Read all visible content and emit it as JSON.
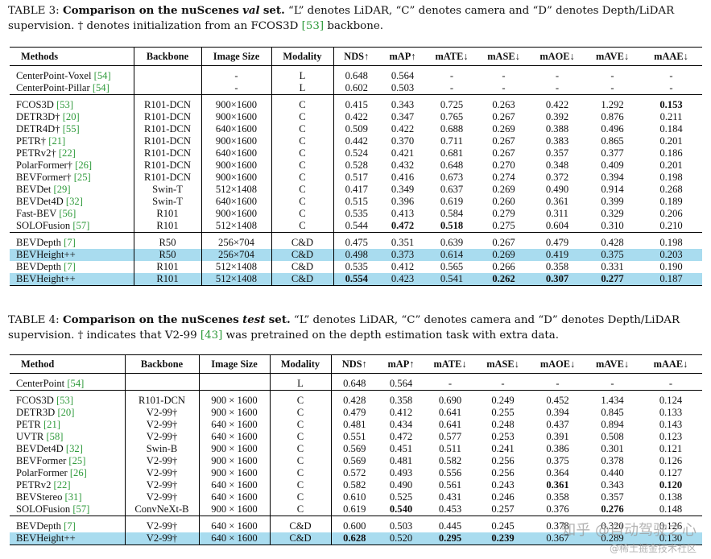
{
  "table3": {
    "label": "TABLE 3:",
    "caption_bold": "Comparison on the nuScenes",
    "caption_italic": "val",
    "caption_bold_end": "set.",
    "caption_rest_1": " “L” denotes LiDAR, “C” denotes camera and “D” denotes Depth/LiDAR supervision. † denotes initialization from an FCOS3D ",
    "caption_ref": "[53]",
    "caption_rest_2": " backbone.",
    "headers": [
      "Methods",
      "Backbone",
      "Image Size",
      "Modality",
      "NDS↑",
      "mAP↑",
      "mATE↓",
      "mASE↓",
      "mAOE↓",
      "mAVE↓",
      "mAAE↓"
    ],
    "groups": [
      [
        {
          "method": "CenterPoint-Voxel",
          "ref": "[54]",
          "cells": [
            "",
            "-",
            "L",
            "0.648",
            "0.564",
            "-",
            "-",
            "-",
            "-",
            "-"
          ]
        },
        {
          "method": "CenterPoint-Pillar",
          "ref": "[54]",
          "cells": [
            "",
            "-",
            "L",
            "0.602",
            "0.503",
            "-",
            "-",
            "-",
            "-",
            "-"
          ]
        }
      ],
      [
        {
          "method": "FCOS3D",
          "ref": "[53]",
          "cells": [
            "R101-DCN",
            "900×1600",
            "C",
            "0.415",
            "0.343",
            "0.725",
            "0.263",
            "0.422",
            "1.292",
            "0.153"
          ],
          "bold": [
            9
          ]
        },
        {
          "method": "DETR3D†",
          "ref": "[20]",
          "cells": [
            "R101-DCN",
            "900×1600",
            "C",
            "0.422",
            "0.347",
            "0.765",
            "0.267",
            "0.392",
            "0.876",
            "0.211"
          ]
        },
        {
          "method": "DETR4D†",
          "ref": "[55]",
          "cells": [
            "R101-DCN",
            "640×1600",
            "C",
            "0.509",
            "0.422",
            "0.688",
            "0.269",
            "0.388",
            "0.496",
            "0.184"
          ]
        },
        {
          "method": "PETR†",
          "ref": "[21]",
          "cells": [
            "R101-DCN",
            "900×1600",
            "C",
            "0.442",
            "0.370",
            "0.711",
            "0.267",
            "0.383",
            "0.865",
            "0.201"
          ]
        },
        {
          "method": "PETRv2†",
          "ref": "[22]",
          "cells": [
            "R101-DCN",
            "640×1600",
            "C",
            "0.524",
            "0.421",
            "0.681",
            "0.267",
            "0.357",
            "0.377",
            "0.186"
          ]
        },
        {
          "method": "PolarFormer†",
          "ref": "[26]",
          "cells": [
            "R101-DCN",
            "900×1600",
            "C",
            "0.528",
            "0.432",
            "0.648",
            "0.270",
            "0.348",
            "0.409",
            "0.201"
          ]
        },
        {
          "method": "BEVFormer†",
          "ref": "[25]",
          "cells": [
            "R101-DCN",
            "900×1600",
            "C",
            "0.517",
            "0.416",
            "0.673",
            "0.274",
            "0.372",
            "0.394",
            "0.198"
          ]
        },
        {
          "method": "BEVDet",
          "ref": "[29]",
          "cells": [
            "Swin-T",
            "512×1408",
            "C",
            "0.417",
            "0.349",
            "0.637",
            "0.269",
            "0.490",
            "0.914",
            "0.268"
          ]
        },
        {
          "method": "BEVDet4D",
          "ref": "[32]",
          "cells": [
            "Swin-T",
            "640×1600",
            "C",
            "0.515",
            "0.396",
            "0.619",
            "0.260",
            "0.361",
            "0.399",
            "0.189"
          ]
        },
        {
          "method": "Fast-BEV",
          "ref": "[56]",
          "cells": [
            "R101",
            "900×1600",
            "C",
            "0.535",
            "0.413",
            "0.584",
            "0.279",
            "0.311",
            "0.329",
            "0.206"
          ]
        },
        {
          "method": "SOLOFusion",
          "ref": "[57]",
          "cells": [
            "R101",
            "512×1408",
            "C",
            "0.544",
            "0.472",
            "0.518",
            "0.275",
            "0.604",
            "0.310",
            "0.210"
          ],
          "bold": [
            4,
            5
          ]
        }
      ],
      [
        {
          "method": "BEVDepth",
          "ref": "[7]",
          "cells": [
            "R50",
            "256×704",
            "C&D",
            "0.475",
            "0.351",
            "0.639",
            "0.267",
            "0.479",
            "0.428",
            "0.198"
          ]
        },
        {
          "method": "BEVHeight++",
          "ref": "",
          "cells": [
            "R50",
            "256×704",
            "C&D",
            "0.498",
            "0.373",
            "0.614",
            "0.269",
            "0.419",
            "0.375",
            "0.203"
          ],
          "hl": true
        },
        {
          "method": "BEVDepth",
          "ref": "[7]",
          "cells": [
            "R101",
            "512×1408",
            "C&D",
            "0.535",
            "0.412",
            "0.565",
            "0.266",
            "0.358",
            "0.331",
            "0.190"
          ]
        },
        {
          "method": "BEVHeight++",
          "ref": "",
          "cells": [
            "R101",
            "512×1408",
            "C&D",
            "0.554",
            "0.423",
            "0.541",
            "0.262",
            "0.307",
            "0.277",
            "0.187"
          ],
          "hl": true,
          "bold": [
            3,
            6,
            7,
            8
          ]
        }
      ]
    ]
  },
  "table4": {
    "label": "TABLE 4:",
    "caption_bold": "Comparison on the nuScenes",
    "caption_italic": "test",
    "caption_bold_end": "set.",
    "caption_rest_1": " “L” denotes LiDAR, “C” denotes camera and “D” denotes Depth/LiDAR supervision. † indicates that V2-99 ",
    "caption_ref": "[43]",
    "caption_rest_2": " was pretrained on the depth estimation task with extra data.",
    "headers": [
      "Method",
      "Backbone",
      "Image Size",
      "Modality",
      "NDS↑",
      "mAP↑",
      "mATE↓",
      "mASE↓",
      "mAOE↓",
      "mAVE↓",
      "mAAE↓"
    ],
    "groups": [
      [
        {
          "method": "CenterPoint",
          "ref": "[54]",
          "cells": [
            "",
            "",
            "L",
            "0.648",
            "0.564",
            "-",
            "-",
            "-",
            "-",
            "-"
          ]
        }
      ],
      [
        {
          "method": "FCOS3D",
          "ref": "[53]",
          "cells": [
            "R101-DCN",
            "900 × 1600",
            "C",
            "0.428",
            "0.358",
            "0.690",
            "0.249",
            "0.452",
            "1.434",
            "0.124"
          ]
        },
        {
          "method": "DETR3D",
          "ref": "[20]",
          "cells": [
            "V2-99†",
            "900 × 1600",
            "C",
            "0.479",
            "0.412",
            "0.641",
            "0.255",
            "0.394",
            "0.845",
            "0.133"
          ]
        },
        {
          "method": "PETR",
          "ref": "[21]",
          "cells": [
            "V2-99†",
            "640 × 1600",
            "C",
            "0.481",
            "0.434",
            "0.641",
            "0.248",
            "0.437",
            "0.894",
            "0.143"
          ]
        },
        {
          "method": "UVTR",
          "ref": "[58]",
          "cells": [
            "V2-99†",
            "640 × 1600",
            "C",
            "0.551",
            "0.472",
            "0.577",
            "0.253",
            "0.391",
            "0.508",
            "0.123"
          ]
        },
        {
          "method": "BEVDet4D",
          "ref": "[32]",
          "cells": [
            "Swin-B",
            "900 × 1600",
            "C",
            "0.569",
            "0.451",
            "0.511",
            "0.241",
            "0.386",
            "0.301",
            "0.121"
          ]
        },
        {
          "method": "BEVFormer",
          "ref": "[25]",
          "cells": [
            "V2-99†",
            "900 × 1600",
            "C",
            "0.569",
            "0.481",
            "0.582",
            "0.256",
            "0.375",
            "0.378",
            "0.126"
          ]
        },
        {
          "method": "PolarFormer",
          "ref": "[26]",
          "cells": [
            "V2-99†",
            "900 × 1600",
            "C",
            "0.572",
            "0.493",
            "0.556",
            "0.256",
            "0.364",
            "0.440",
            "0.127"
          ]
        },
        {
          "method": "PETRv2",
          "ref": "[22]",
          "cells": [
            "V2-99†",
            "640 × 1600",
            "C",
            "0.582",
            "0.490",
            "0.561",
            "0.243",
            "0.361",
            "0.343",
            "0.120"
          ],
          "bold": [
            7,
            9
          ]
        },
        {
          "method": "BEVStereo",
          "ref": "[31]",
          "cells": [
            "V2-99†",
            "640 × 1600",
            "C",
            "0.610",
            "0.525",
            "0.431",
            "0.246",
            "0.358",
            "0.357",
            "0.138"
          ]
        },
        {
          "method": "SOLOFusion",
          "ref": "[57]",
          "cells": [
            "ConvNeXt-B",
            "900 × 1600",
            "C",
            "0.619",
            "0.540",
            "0.453",
            "0.257",
            "0.376",
            "0.276",
            "0.148"
          ],
          "bold": [
            4,
            8
          ]
        }
      ],
      [
        {
          "method": "BEVDepth",
          "ref": "[7]",
          "cells": [
            "V2-99†",
            "640 × 1600",
            "C&D",
            "0.600",
            "0.503",
            "0.445",
            "0.245",
            "0.378",
            "0.320",
            "0.126"
          ]
        },
        {
          "method": "BEVHeight++",
          "ref": "",
          "cells": [
            "V2-99†",
            "640 × 1600",
            "C&D",
            "0.628",
            "0.520",
            "0.295",
            "0.239",
            "0.367",
            "0.289",
            "0.130"
          ],
          "hl": true,
          "bold": [
            3,
            5,
            6
          ]
        }
      ]
    ]
  },
  "watermark": {
    "line1": "知乎 @自动驾驶之心",
    "line2": "@稀土掘金技术社区"
  }
}
